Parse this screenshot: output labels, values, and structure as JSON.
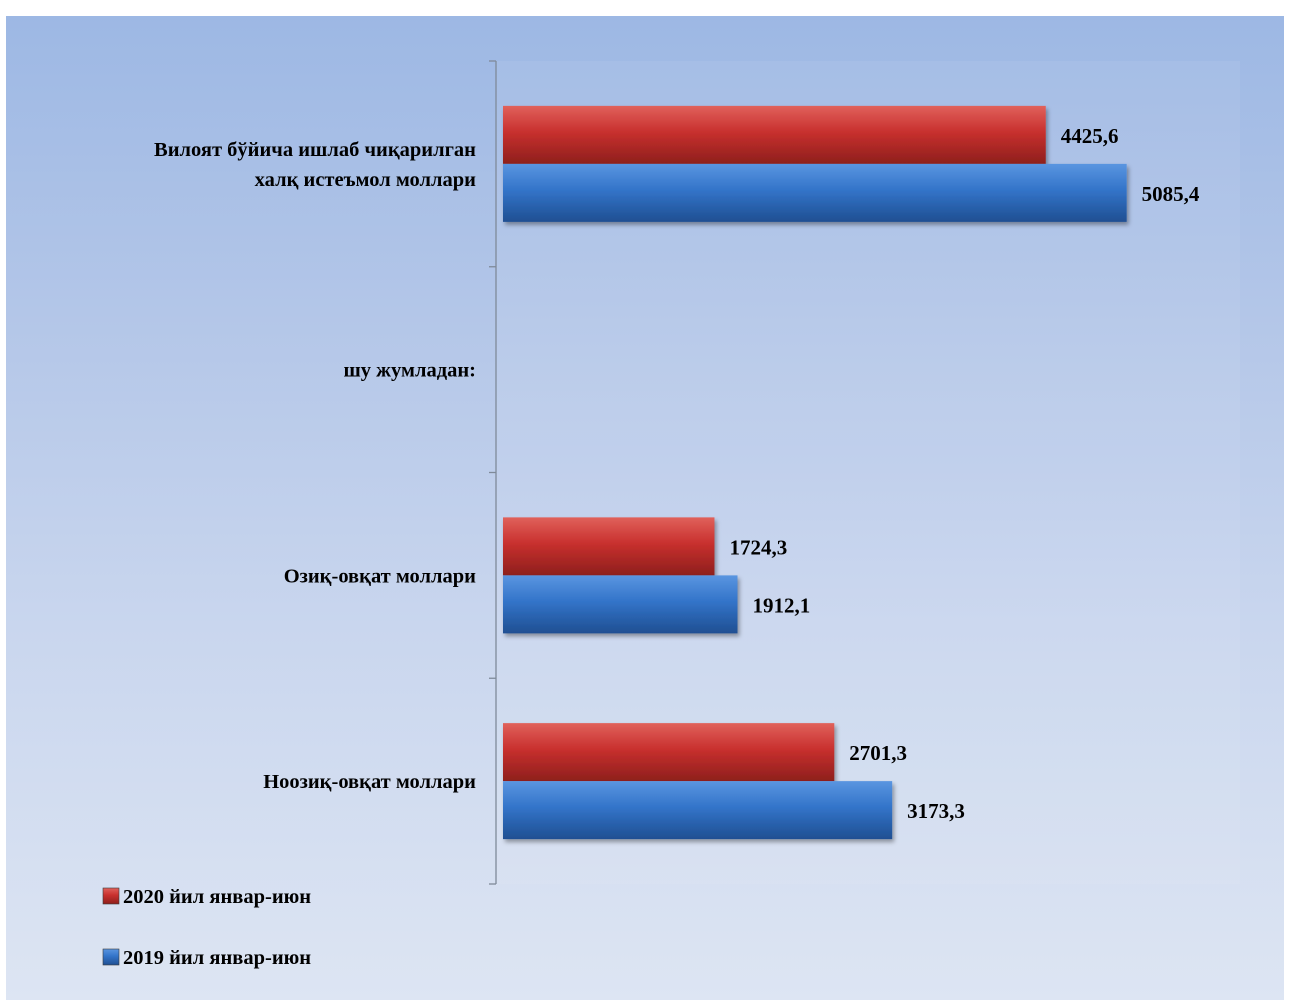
{
  "chart_data": {
    "type": "bar",
    "orientation": "horizontal",
    "categories": [
      [
        "Вилоят бўйича ишлаб чиқарилган",
        "халқ истеъмол моллари"
      ],
      [
        "шу жумладан:"
      ],
      [
        "Озиқ-овқат моллари"
      ],
      [
        "Ноозиқ-овқат моллари"
      ]
    ],
    "series": [
      {
        "name": "2020 йил январ-июн",
        "color": "#c8302e",
        "values": [
          4425.6,
          null,
          1724.3,
          2701.3
        ],
        "labels": [
          "4425,6",
          "",
          "1724,3",
          "2701,3"
        ]
      },
      {
        "name": "2019 йил январ-июн",
        "color": "#3374c9",
        "values": [
          5085.4,
          null,
          1912.1,
          3173.3
        ],
        "labels": [
          "5085,4",
          "",
          "1912,1",
          "3173,3"
        ]
      }
    ],
    "legend_position": "bottom-left",
    "grid": false,
    "xlim": [
      0,
      6000
    ]
  }
}
